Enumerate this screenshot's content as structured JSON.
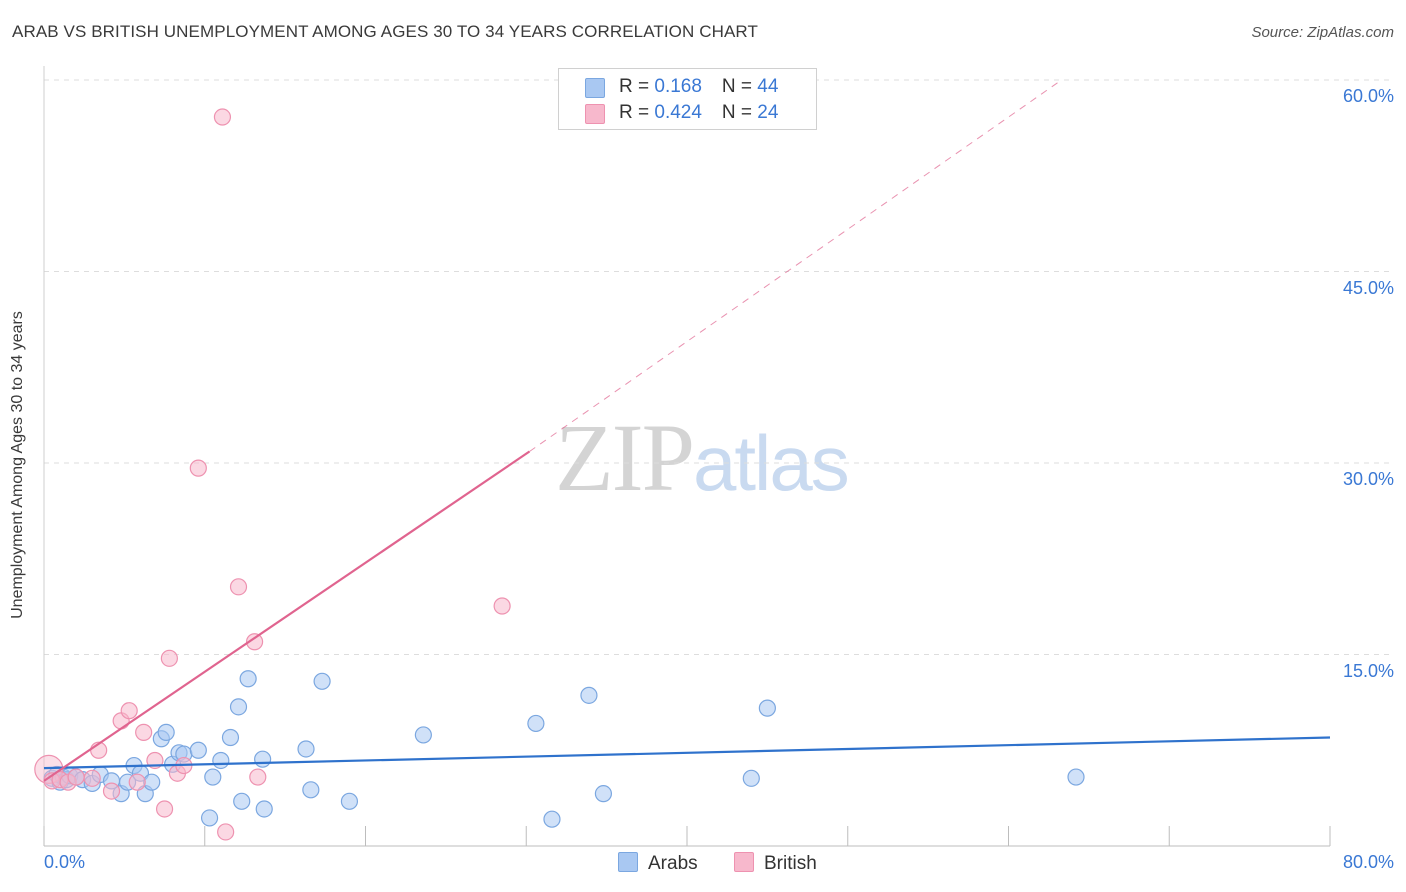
{
  "header": {
    "title": "ARAB VS BRITISH UNEMPLOYMENT AMONG AGES 30 TO 34 YEARS CORRELATION CHART",
    "source": "Source: ZipAtlas.com"
  },
  "watermark": {
    "zip": "ZIP",
    "atlas": "atlas"
  },
  "legend": {
    "rows": [
      {
        "r_label": "R = ",
        "r_value": "0.168",
        "n_label": "N = ",
        "n_value": "44",
        "color": "#a9c8f2"
      },
      {
        "r_label": "R = ",
        "r_value": "0.424",
        "n_label": "N = ",
        "n_value": "24",
        "color": "#f7b8cc"
      }
    ]
  },
  "bottom_legend": {
    "arabs": "Arabs",
    "british": "British"
  },
  "colors": {
    "arabs_fill": "#a9c8f2",
    "arabs_stroke": "#7ba7e0",
    "arabs_line": "#2f72cc",
    "british_fill": "#f7b8cc",
    "british_stroke": "#ee92b0",
    "british_line": "#e0648f",
    "tick_label": "#3a78d4",
    "grid": "#dddddd"
  },
  "chart_data": {
    "type": "scatter",
    "title": "ARAB VS BRITISH UNEMPLOYMENT AMONG AGES 30 TO 34 YEARS CORRELATION CHART",
    "xlabel": "",
    "ylabel": "Unemployment Among Ages 30 to 34 years",
    "xlim": [
      0,
      80
    ],
    "ylim": [
      0,
      60
    ],
    "x_tick_labels": [
      "0.0%",
      "80.0%"
    ],
    "y_ticks": [
      15,
      30,
      45,
      60
    ],
    "y_tick_labels": [
      "15.0%",
      "30.0%",
      "45.0%",
      "60.0%"
    ],
    "grid": true,
    "series": [
      {
        "name": "Arabs",
        "r": 0.168,
        "n": 44,
        "trend": {
          "x": [
            0,
            80
          ],
          "y": [
            6.1,
            8.5
          ],
          "dashed_extension": false
        },
        "points": [
          [
            0.5,
            5.3
          ],
          [
            0.8,
            5.6
          ],
          [
            1.0,
            5.0
          ],
          [
            1.2,
            5.4
          ],
          [
            1.4,
            5.2
          ],
          [
            1.6,
            5.5
          ],
          [
            2.0,
            5.4
          ],
          [
            2.4,
            5.2
          ],
          [
            3.0,
            4.9
          ],
          [
            3.5,
            5.6
          ],
          [
            4.2,
            5.1
          ],
          [
            4.8,
            4.1
          ],
          [
            5.2,
            5.0
          ],
          [
            5.6,
            6.3
          ],
          [
            6.0,
            5.7
          ],
          [
            6.3,
            4.1
          ],
          [
            6.7,
            5.0
          ],
          [
            7.3,
            8.4
          ],
          [
            7.6,
            8.9
          ],
          [
            8.0,
            6.4
          ],
          [
            8.4,
            7.3
          ],
          [
            8.7,
            7.2
          ],
          [
            9.6,
            7.5
          ],
          [
            10.3,
            2.2
          ],
          [
            10.5,
            5.4
          ],
          [
            11.0,
            6.7
          ],
          [
            11.6,
            8.5
          ],
          [
            12.1,
            10.9
          ],
          [
            12.3,
            3.5
          ],
          [
            12.7,
            13.1
          ],
          [
            13.6,
            6.8
          ],
          [
            13.7,
            2.9
          ],
          [
            16.3,
            7.6
          ],
          [
            16.6,
            4.4
          ],
          [
            17.3,
            12.9
          ],
          [
            19.0,
            3.5
          ],
          [
            23.6,
            8.7
          ],
          [
            30.6,
            9.6
          ],
          [
            31.6,
            2.1
          ],
          [
            33.9,
            11.8
          ],
          [
            34.8,
            4.1
          ],
          [
            44.0,
            5.3
          ],
          [
            45.0,
            10.8
          ],
          [
            64.2,
            5.4
          ]
        ]
      },
      {
        "name": "British",
        "r": 0.424,
        "n": 24,
        "trend": {
          "x": [
            0,
            30.2
          ],
          "y": [
            5.1,
            30.9
          ],
          "dashed_extension": true,
          "dashed_to": [
            63.3,
            60.0
          ]
        },
        "points": [
          [
            0.3,
            6.0
          ],
          [
            0.5,
            5.1
          ],
          [
            1.0,
            5.2
          ],
          [
            1.5,
            5.0
          ],
          [
            2.0,
            5.4
          ],
          [
            3.0,
            5.3
          ],
          [
            3.4,
            7.5
          ],
          [
            4.2,
            4.3
          ],
          [
            4.8,
            9.8
          ],
          [
            5.3,
            10.6
          ],
          [
            5.8,
            5.0
          ],
          [
            6.2,
            8.9
          ],
          [
            6.9,
            6.7
          ],
          [
            7.5,
            2.9
          ],
          [
            7.8,
            14.7
          ],
          [
            8.3,
            5.7
          ],
          [
            8.7,
            6.3
          ],
          [
            9.6,
            29.6
          ],
          [
            11.1,
            57.1
          ],
          [
            11.3,
            1.1
          ],
          [
            12.1,
            20.3
          ],
          [
            13.1,
            16.0
          ],
          [
            13.3,
            5.4
          ],
          [
            28.5,
            18.8
          ]
        ]
      }
    ]
  }
}
